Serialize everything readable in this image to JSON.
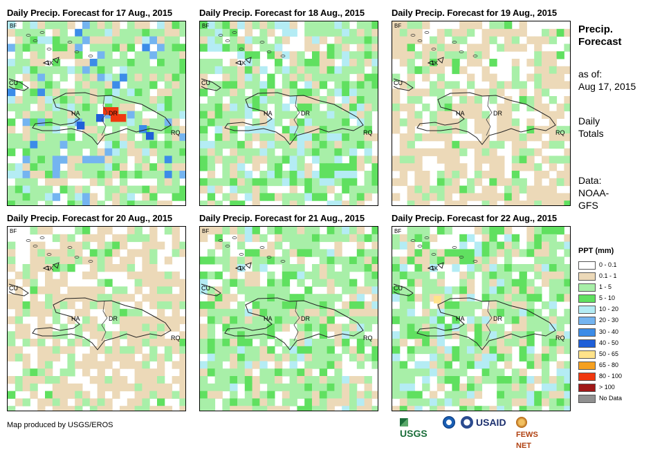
{
  "panels": [
    {
      "title": "Daily Precip. Forecast for 17 Aug., 2015",
      "seed": 17,
      "wet": 1.0
    },
    {
      "title": "Daily Precip. Forecast for 18 Aug., 2015",
      "seed": 18,
      "wet": 0.55
    },
    {
      "title": "Daily Precip. Forecast for 19 Aug., 2015",
      "seed": 19,
      "wet": 0.2
    },
    {
      "title": "Daily Precip. Forecast for 20 Aug., 2015",
      "seed": 20,
      "wet": 0.25
    },
    {
      "title": "Daily Precip. Forecast for 21 Aug., 2015",
      "seed": 21,
      "wet": 0.45
    },
    {
      "title": "Daily Precip. Forecast for 22 Aug., 2015",
      "seed": 22,
      "wet": 0.6
    }
  ],
  "map_labels": {
    "bf": "BF",
    "cu": "CU",
    "tk": "TK",
    "ha": "HA",
    "dr": "DR",
    "rq": "RQ"
  },
  "sidebar": {
    "heading_line1": "Precip.",
    "heading_line2": "Forecast",
    "asof_label": "as of:",
    "asof_date": "Aug 17, 2015",
    "totals_line1": "Daily",
    "totals_line2": "Totals",
    "data_line1": "Data:",
    "data_line2": "NOAA-",
    "data_line3": "GFS"
  },
  "legend": {
    "title": "PPT (mm)",
    "items": [
      {
        "label": "0 - 0.1",
        "color": "#ffffff"
      },
      {
        "label": "0.1 - 1",
        "color": "#ecd9b8"
      },
      {
        "label": "1 - 5",
        "color": "#a8efa8"
      },
      {
        "label": "5 - 10",
        "color": "#60e060"
      },
      {
        "label": "10 - 20",
        "color": "#b4ecf4"
      },
      {
        "label": "20 - 30",
        "color": "#74b4f0"
      },
      {
        "label": "30 - 40",
        "color": "#3c8ce8"
      },
      {
        "label": "40 - 50",
        "color": "#1f5fd8"
      },
      {
        "label": "50 - 65",
        "color": "#ffe38a"
      },
      {
        "label": "65 - 80",
        "color": "#f5a020"
      },
      {
        "label": "80 - 100",
        "color": "#f03810"
      },
      {
        "label": "> 100",
        "color": "#a01818"
      },
      {
        "label": "No Data",
        "color": "#909090"
      }
    ]
  },
  "footer": {
    "credit": "Map produced by USGS/EROS"
  },
  "logos": {
    "usgs": "USGS",
    "usaid": "USAID",
    "fewsnet": "FEWS NET"
  }
}
